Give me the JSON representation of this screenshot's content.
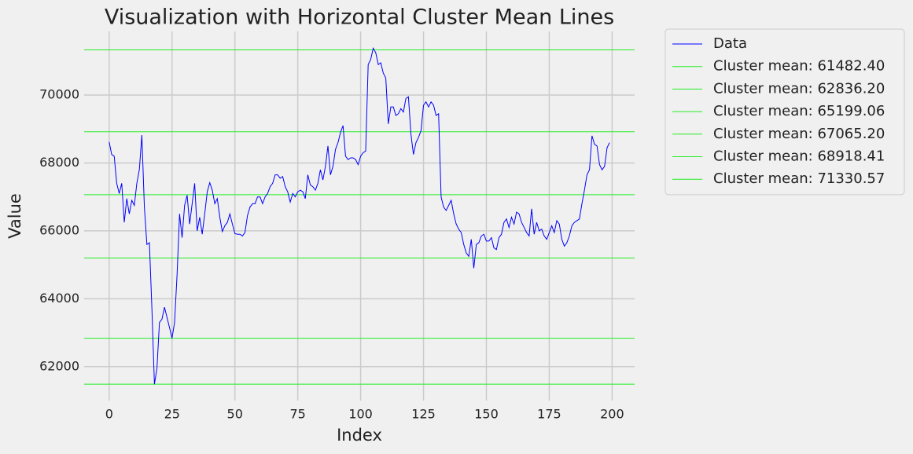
{
  "chart_data": {
    "type": "line",
    "title": "Visualization with Horizontal Cluster Mean Lines",
    "xlabel": "Index",
    "ylabel": "Value",
    "x": [
      0,
      1,
      2,
      3,
      4,
      5,
      6,
      7,
      8,
      9,
      10,
      11,
      12,
      13,
      14,
      15,
      16,
      17,
      18,
      19,
      20,
      21,
      22,
      23,
      24,
      25,
      26,
      27,
      28,
      29,
      30,
      31,
      32,
      33,
      34,
      35,
      36,
      37,
      38,
      39,
      40,
      41,
      42,
      43,
      44,
      45,
      46,
      47,
      48,
      49,
      50,
      51,
      52,
      53,
      54,
      55,
      56,
      57,
      58,
      59,
      60,
      61,
      62,
      63,
      64,
      65,
      66,
      67,
      68,
      69,
      70,
      71,
      72,
      73,
      74,
      75,
      76,
      77,
      78,
      79,
      80,
      81,
      82,
      83,
      84,
      85,
      86,
      87,
      88,
      89,
      90,
      91,
      92,
      93,
      94,
      95,
      96,
      97,
      98,
      99,
      100,
      101,
      102,
      103,
      104,
      105,
      106,
      107,
      108,
      109,
      110,
      111,
      112,
      113,
      114,
      115,
      116,
      117,
      118,
      119,
      120,
      121,
      122,
      123,
      124,
      125,
      126,
      127,
      128,
      129,
      130,
      131,
      132,
      133,
      134,
      135,
      136,
      137,
      138,
      139,
      140,
      141,
      142,
      143,
      144,
      145,
      146,
      147,
      148,
      149,
      150,
      151,
      152,
      153,
      154,
      155,
      156,
      157,
      158,
      159,
      160,
      161,
      162,
      163,
      164,
      165,
      166,
      167,
      168,
      169,
      170,
      171,
      172,
      173,
      174,
      175,
      176,
      177,
      178,
      179,
      180,
      181,
      182,
      183,
      184,
      185,
      186,
      187,
      188,
      189,
      190,
      191,
      192,
      193,
      194,
      195,
      196,
      197,
      198,
      199
    ],
    "series": [
      {
        "name": "Data",
        "color": "#0000ff",
        "values": [
          68620,
          68250,
          68200,
          67400,
          67100,
          67400,
          66250,
          66950,
          66500,
          66900,
          66750,
          67400,
          67800,
          68820,
          66700,
          65600,
          65650,
          63700,
          61482,
          61950,
          63300,
          63400,
          63750,
          63450,
          63150,
          62836,
          63300,
          64700,
          66500,
          65800,
          66750,
          67050,
          66200,
          66800,
          67400,
          66000,
          66400,
          65900,
          66500,
          67150,
          67420,
          67200,
          66800,
          66950,
          66400,
          65980,
          66150,
          66250,
          66500,
          66200,
          65920,
          65900,
          65900,
          65850,
          65950,
          66450,
          66700,
          66800,
          66800,
          67000,
          67000,
          66800,
          67000,
          67100,
          67300,
          67400,
          67650,
          67650,
          67550,
          67600,
          67300,
          67150,
          66850,
          67100,
          67000,
          67150,
          67200,
          67150,
          66950,
          67650,
          67350,
          67300,
          67200,
          67400,
          67800,
          67500,
          67900,
          68500,
          67650,
          67900,
          68400,
          68600,
          68900,
          69100,
          68200,
          68100,
          68150,
          68150,
          68100,
          67950,
          68200,
          68300,
          68350,
          70900,
          71050,
          71380,
          71250,
          70900,
          70950,
          70650,
          70500,
          69150,
          69650,
          69650,
          69400,
          69450,
          69600,
          69500,
          69900,
          69950,
          68850,
          68250,
          68600,
          68750,
          68950,
          69700,
          69800,
          69650,
          69800,
          69700,
          69400,
          69450,
          67000,
          66700,
          66600,
          66750,
          66900,
          66500,
          66200,
          66050,
          65950,
          65600,
          65350,
          65250,
          65750,
          64900,
          65600,
          65650,
          65850,
          65900,
          65700,
          65700,
          65800,
          65500,
          65450,
          65800,
          65900,
          66250,
          66350,
          66100,
          66400,
          66200,
          66550,
          66500,
          66250,
          66100,
          65950,
          65850,
          66650,
          65900,
          66250,
          66000,
          66050,
          65850,
          65750,
          65950,
          66150,
          65950,
          66300,
          66200,
          65750,
          65550,
          65650,
          65850,
          66150,
          66250,
          66300,
          66350,
          66800,
          67200,
          67650,
          67800,
          68800,
          68550,
          68500,
          67950,
          67800,
          67900,
          68450,
          68600
        ]
      }
    ],
    "hlines": [
      {
        "name": "Cluster mean: 61482.40",
        "value": 61482.4,
        "color": "#22ee22"
      },
      {
        "name": "Cluster mean: 62836.20",
        "value": 62836.2,
        "color": "#22ee22"
      },
      {
        "name": "Cluster mean: 65199.06",
        "value": 65199.06,
        "color": "#22ee22"
      },
      {
        "name": "Cluster mean: 67065.20",
        "value": 67065.2,
        "color": "#22ee22"
      },
      {
        "name": "Cluster mean: 68918.41",
        "value": 68918.41,
        "color": "#22ee22"
      },
      {
        "name": "Cluster mean: 71330.57",
        "value": 71330.57,
        "color": "#22ee22"
      }
    ],
    "xlim": [
      -9.95,
      208.95
    ],
    "ylim": [
      61000,
      71875
    ],
    "xticks": [
      0,
      25,
      50,
      75,
      100,
      125,
      150,
      175,
      200
    ],
    "yticks": [
      62000,
      64000,
      66000,
      68000,
      70000
    ],
    "grid": true,
    "legend": "outside right"
  }
}
